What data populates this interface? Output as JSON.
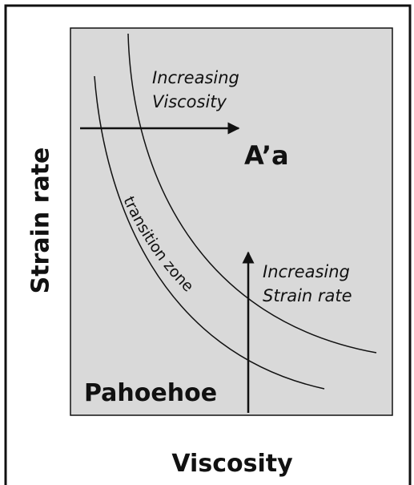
{
  "axes": {
    "y_label": "Strain rate",
    "x_label": "Viscosity"
  },
  "regions": {
    "upper": "A’a",
    "lower": "Pahoehoe",
    "middle": "transition zone"
  },
  "arrows": {
    "horizontal": [
      "Increasing",
      "Viscosity"
    ],
    "vertical": [
      "Increasing",
      "Strain rate"
    ]
  }
}
